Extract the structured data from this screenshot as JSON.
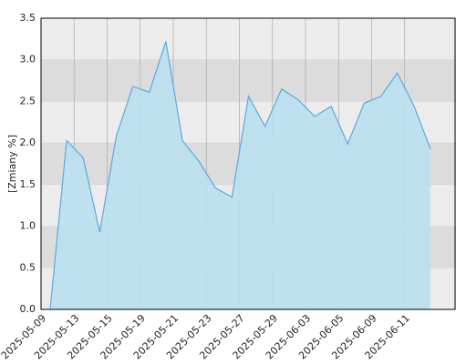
{
  "chart_data": {
    "type": "area",
    "y_label": "[Zmiany %]",
    "categories": [
      "2025-05-09",
      null,
      "2025-05-13",
      null,
      "2025-05-15",
      null,
      "2025-05-19",
      null,
      "2025-05-21",
      null,
      "2025-05-23",
      null,
      "2025-05-27",
      null,
      "2025-05-29",
      null,
      "2025-06-03",
      null,
      "2025-06-05",
      null,
      "2025-06-09",
      null,
      "2025-06-11",
      null
    ],
    "values": [
      0,
      2.03,
      1.82,
      0.93,
      2.08,
      2.68,
      2.61,
      3.22,
      2.03,
      1.78,
      1.46,
      1.35,
      2.56,
      2.2,
      2.65,
      2.52,
      2.32,
      2.44,
      1.99,
      2.48,
      2.56,
      2.84,
      2.45,
      1.93
    ],
    "color": "#5aaae0",
    "fill": "#b9dff0",
    "ylim": [
      0,
      3.5
    ],
    "yticks": [
      {
        "value": 0,
        "label": "0.0"
      },
      0.5,
      {
        "value": 1,
        "label": "1.0"
      },
      1.5,
      {
        "value": 2,
        "label": "2.0"
      },
      2.5,
      {
        "value": 3,
        "label": "3.0"
      },
      3.5
    ],
    "grid": true
  }
}
